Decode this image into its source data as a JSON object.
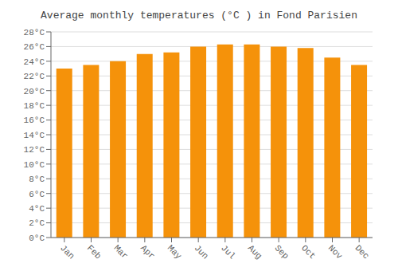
{
  "chart_data": {
    "type": "bar",
    "title": "Average monthly temperatures (°C ) in Fond Parisien",
    "categories": [
      "Jan",
      "Feb",
      "Mar",
      "Apr",
      "May",
      "Jun",
      "Jul",
      "Aug",
      "Sep",
      "Oct",
      "Nov",
      "Dec"
    ],
    "values": [
      23.0,
      23.5,
      24.0,
      25.0,
      25.2,
      26.0,
      26.3,
      26.3,
      26.0,
      25.8,
      24.5,
      23.5
    ],
    "color": "#F5920A",
    "ylim": [
      0,
      28
    ],
    "yticks": [
      {
        "value": 0,
        "label": "0°C"
      },
      {
        "value": 2,
        "label": "2°C"
      },
      {
        "value": 4,
        "label": "4°C"
      },
      {
        "value": 6,
        "label": "6°C"
      },
      {
        "value": 8,
        "label": "8°C"
      },
      {
        "value": 10,
        "label": "10°C"
      },
      {
        "value": 12,
        "label": "12°C"
      },
      {
        "value": 14,
        "label": "14°C"
      },
      {
        "value": 16,
        "label": "16°C"
      },
      {
        "value": 18,
        "label": "18°C"
      },
      {
        "value": 20,
        "label": "20°C"
      },
      {
        "value": 22,
        "label": "22°C"
      },
      {
        "value": 24,
        "label": "24°C"
      },
      {
        "value": 26,
        "label": "26°C"
      },
      {
        "value": 28,
        "label": "28°C"
      }
    ],
    "grid": true
  }
}
